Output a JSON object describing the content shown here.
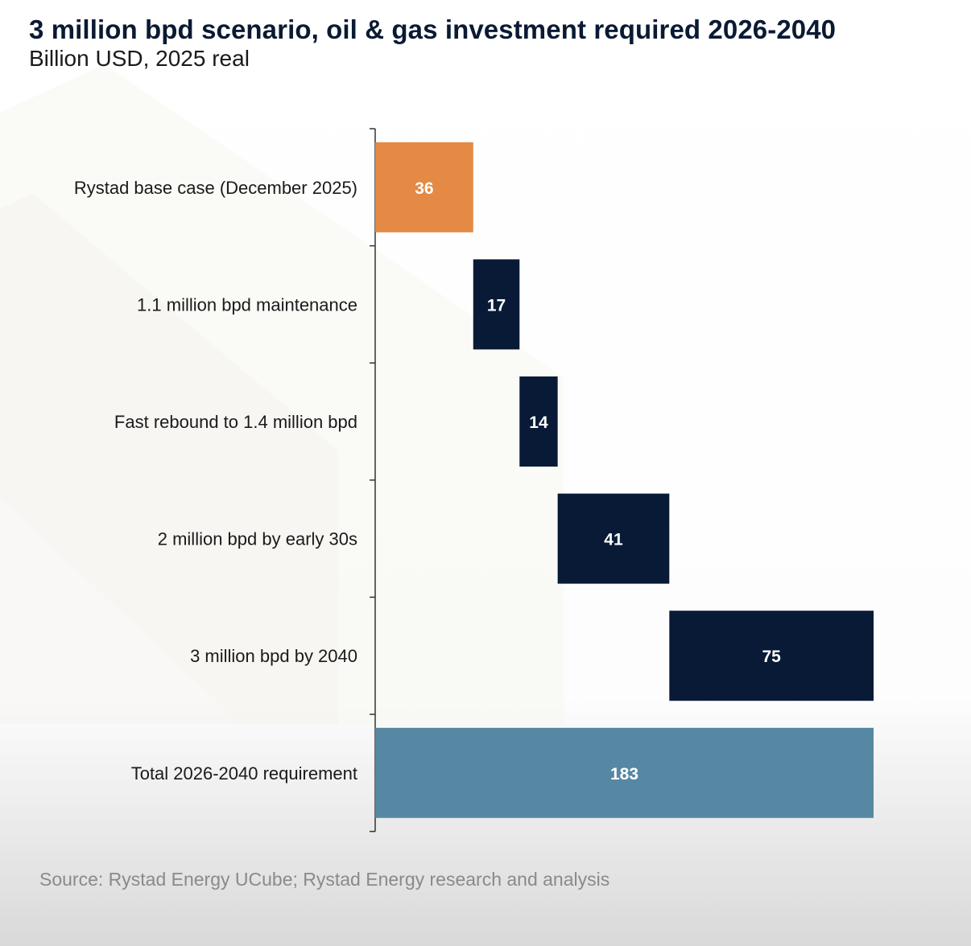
{
  "header": {
    "title": "3 million bpd scenario, oil & gas investment required 2026-2040",
    "subtitle": "Billion USD, 2025 real"
  },
  "footer": {
    "source": "Source: Rystad Energy UCube; Rystad Energy research and analysis"
  },
  "colors": {
    "base": "#e48a45",
    "increment": "#081a36",
    "total": "#5688a3",
    "axis": "#333333",
    "label_text": "#1a1a1a",
    "value_text": "#ffffff"
  },
  "chart_data": {
    "type": "waterfall",
    "orientation": "horizontal",
    "title": "3 million bpd scenario, oil & gas investment required 2026-2040",
    "subtitle": "Billion USD, 2025 real",
    "unit": "Billion USD",
    "xlim": [
      0,
      183
    ],
    "xlabel": "",
    "ylabel": "",
    "grid": false,
    "legend": "none",
    "categories": [
      "Rystad base case (December 2025)",
      "1.1 million bpd maintenance",
      "Fast rebound to 1.4 million bpd",
      "2 million bpd by early 30s",
      "3 million bpd by 2040",
      "Total 2026-2040 requirement"
    ],
    "values": [
      36,
      17,
      14,
      41,
      75,
      183
    ],
    "kinds": [
      "base",
      "increment",
      "increment",
      "increment",
      "increment",
      "total"
    ]
  }
}
